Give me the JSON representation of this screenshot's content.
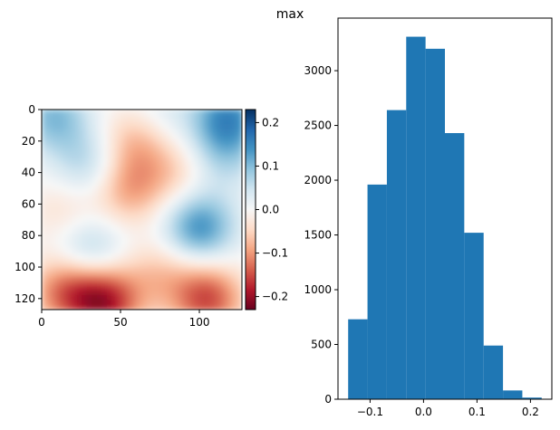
{
  "figure": {
    "suptitle": "max"
  },
  "chart_data": [
    {
      "type": "heatmap",
      "colormap": "RdBu",
      "xlim": [
        0,
        127
      ],
      "ylim": [
        127,
        0
      ],
      "xticks": [
        0,
        50,
        100
      ],
      "yticks": [
        0,
        20,
        40,
        60,
        80,
        100,
        120
      ],
      "grid": false,
      "blobs": [
        {
          "x": 100,
          "y": 75,
          "value": 0.14
        },
        {
          "x": 30,
          "y": 35,
          "value": 0.07
        },
        {
          "x": 30,
          "y": 90,
          "value": 0.08
        },
        {
          "x": 118,
          "y": 5,
          "value": 0.14
        },
        {
          "x": 8,
          "y": 5,
          "value": 0.1
        },
        {
          "x": 75,
          "y": 5,
          "value": 0.04
        },
        {
          "x": 115,
          "y": 30,
          "value": 0.06
        },
        {
          "x": 60,
          "y": 20,
          "value": -0.08
        },
        {
          "x": 55,
          "y": 50,
          "value": -0.09
        },
        {
          "x": 85,
          "y": 40,
          "value": -0.05
        },
        {
          "x": 15,
          "y": 65,
          "value": -0.04
        },
        {
          "x": 40,
          "y": 122,
          "value": -0.18
        },
        {
          "x": 15,
          "y": 115,
          "value": -0.12
        },
        {
          "x": 105,
          "y": 120,
          "value": -0.15
        },
        {
          "x": 75,
          "y": 105,
          "value": -0.06
        }
      ],
      "colorbar": {
        "vmin": -0.23,
        "vmax": 0.23,
        "ticks": [
          -0.2,
          -0.1,
          0.0,
          0.1,
          0.2
        ],
        "tick_labels": [
          "−0.2",
          "−0.1",
          "0.0",
          "0.1",
          "0.2"
        ]
      }
    },
    {
      "type": "bar",
      "subtype": "histogram",
      "color": "#1f77b4",
      "bin_edges": [
        -0.141,
        -0.1048,
        -0.0686,
        -0.0324,
        0.0038,
        0.04,
        0.0762,
        0.1124,
        0.1486,
        0.1848,
        0.221
      ],
      "values": [
        730,
        1960,
        2640,
        3310,
        3200,
        2430,
        1520,
        490,
        80,
        15
      ],
      "xlim": [
        -0.16,
        0.24
      ],
      "ylim": [
        0,
        3480
      ],
      "xticks": [
        -0.1,
        0.0,
        0.1,
        0.2
      ],
      "xtick_labels": [
        "−0.1",
        "0.0",
        "0.1",
        "0.2"
      ],
      "yticks": [
        0,
        500,
        1000,
        1500,
        2000,
        2500,
        3000
      ],
      "grid": false
    }
  ]
}
